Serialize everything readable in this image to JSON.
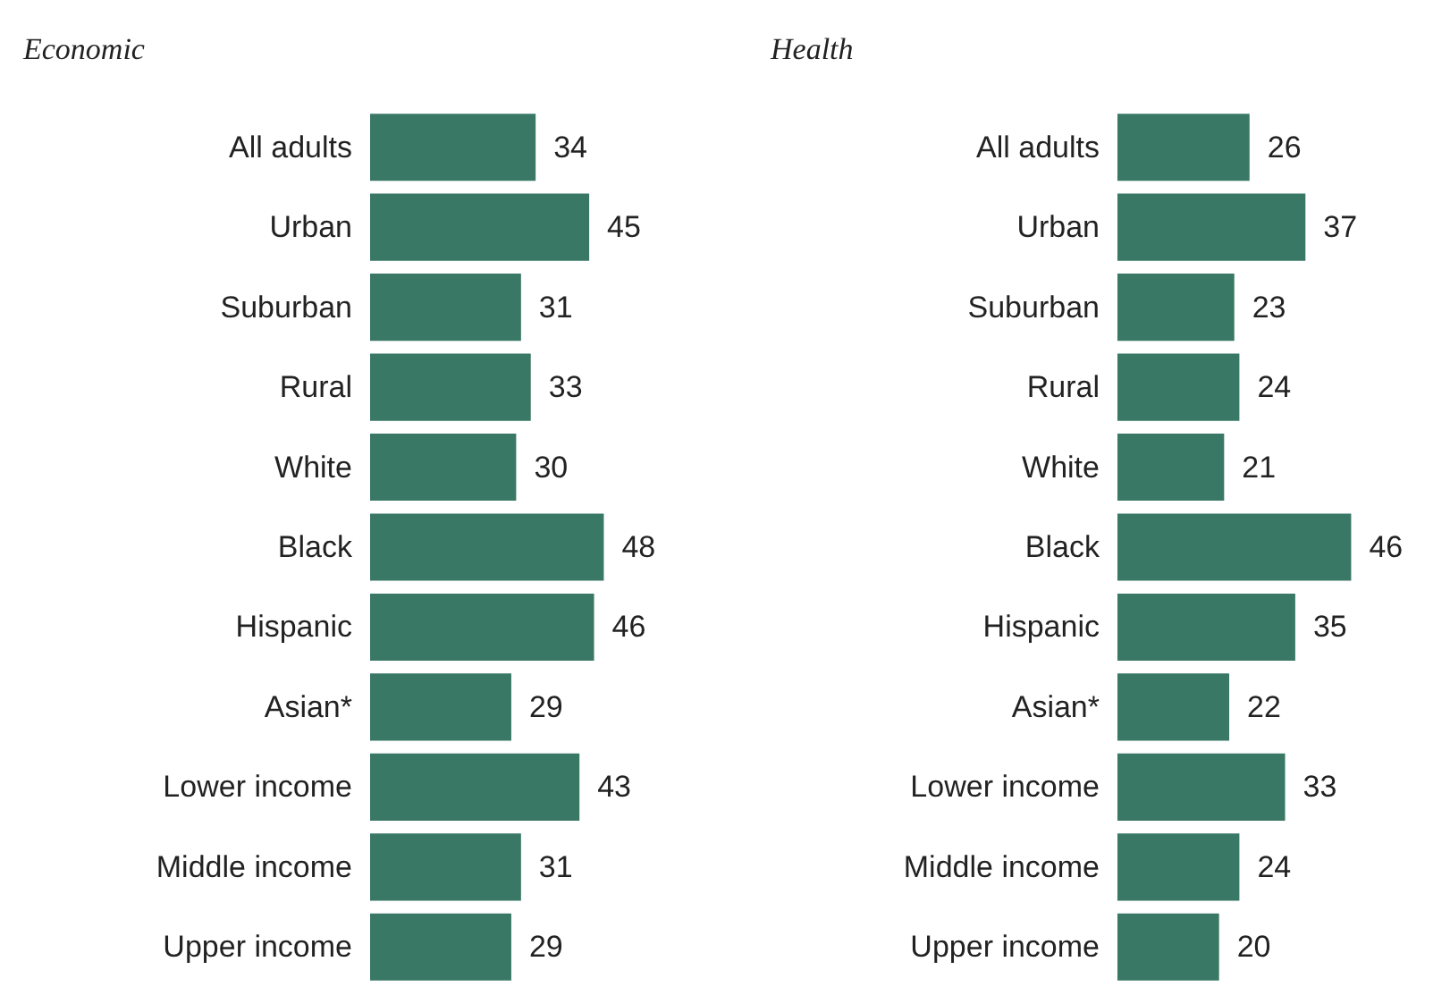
{
  "chart_data": [
    {
      "type": "bar",
      "title": "Economic",
      "orientation": "horizontal",
      "data_labels": true,
      "color": "#3a7866",
      "categories": [
        "All adults",
        "Urban",
        "Suburban",
        "Rural",
        "White",
        "Black",
        "Hispanic",
        "Asian*",
        "Lower income",
        "Middle income",
        "Upper income"
      ],
      "values": [
        34,
        45,
        31,
        33,
        30,
        48,
        46,
        29,
        43,
        31,
        29
      ]
    },
    {
      "type": "bar",
      "title": "Health",
      "orientation": "horizontal",
      "data_labels": true,
      "color": "#3a7866",
      "categories": [
        "All adults",
        "Urban",
        "Suburban",
        "Rural",
        "White",
        "Black",
        "Hispanic",
        "Asian*",
        "Lower income",
        "Middle income",
        "Upper income"
      ],
      "values": [
        26,
        37,
        23,
        24,
        21,
        46,
        35,
        22,
        33,
        24,
        20
      ]
    }
  ]
}
